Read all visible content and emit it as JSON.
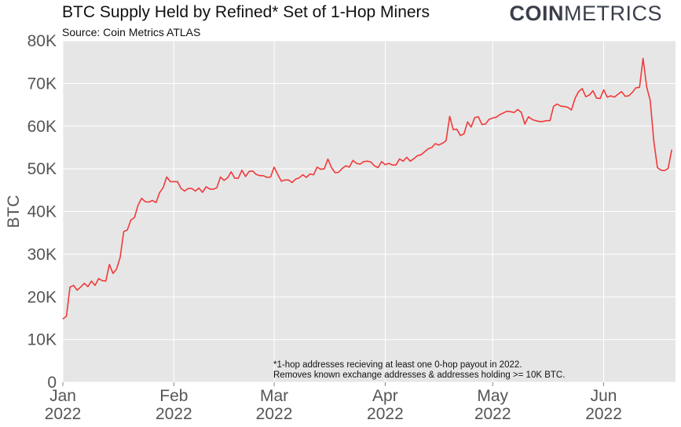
{
  "header": {
    "title": "BTC Supply Held by Refined* Set of 1-Hop Miners",
    "subtitle": "Source: Coin Metrics ATLAS",
    "logo_bold": "COIN",
    "logo_light": "METRICS"
  },
  "colors": {
    "line": "#f03a3a",
    "plot_bg": "#e6e6e6",
    "grid": "#ffffff",
    "logo": "#3a3f4b"
  },
  "chart_data": {
    "type": "line",
    "title": "BTC Supply Held by Refined* Set of 1-Hop Miners",
    "subtitle": "Source: Coin Metrics ATLAS",
    "xlabel": "",
    "ylabel": "BTC",
    "ylim": [
      0,
      80000
    ],
    "grid": true,
    "y_ticks": [
      0,
      10000,
      20000,
      30000,
      40000,
      50000,
      60000,
      70000,
      80000
    ],
    "y_tick_labels": [
      "0",
      "10K",
      "20K",
      "30K",
      "40K",
      "50K",
      "60K",
      "70K",
      "80K"
    ],
    "x_ticks": [
      {
        "date": "2022-01-01",
        "month": "Jan",
        "year": "2022"
      },
      {
        "date": "2022-02-01",
        "month": "Feb",
        "year": "2022"
      },
      {
        "date": "2022-03-01",
        "month": "Mar",
        "year": "2022"
      },
      {
        "date": "2022-04-01",
        "month": "Apr",
        "year": "2022"
      },
      {
        "date": "2022-05-01",
        "month": "May",
        "year": "2022"
      },
      {
        "date": "2022-06-01",
        "month": "Jun",
        "year": "2022"
      }
    ],
    "x_range": [
      "2022-01-01",
      "2022-06-18"
    ],
    "annotation": [
      "*1-hop addresses recieving at least one 0-hop payout in 2022.",
      "Removes known exchange addresses & addresses holding >= 10K BTC."
    ],
    "series": [
      {
        "values": [
          [
            "2022-01-01",
            14800
          ],
          [
            "2022-01-02",
            15500
          ],
          [
            "2022-01-03",
            22300
          ],
          [
            "2022-01-04",
            22700
          ],
          [
            "2022-01-05",
            21600
          ],
          [
            "2022-01-06",
            22300
          ],
          [
            "2022-01-07",
            23200
          ],
          [
            "2022-01-08",
            22400
          ],
          [
            "2022-01-09",
            23700
          ],
          [
            "2022-01-10",
            22700
          ],
          [
            "2022-01-11",
            24300
          ],
          [
            "2022-01-12",
            23800
          ],
          [
            "2022-01-13",
            23700
          ],
          [
            "2022-01-14",
            27600
          ],
          [
            "2022-01-15",
            25500
          ],
          [
            "2022-01-16",
            26500
          ],
          [
            "2022-01-17",
            29300
          ],
          [
            "2022-01-18",
            35300
          ],
          [
            "2022-01-19",
            35700
          ],
          [
            "2022-01-20",
            38000
          ],
          [
            "2022-01-21",
            38600
          ],
          [
            "2022-01-22",
            41500
          ],
          [
            "2022-01-23",
            43100
          ],
          [
            "2022-01-24",
            42300
          ],
          [
            "2022-01-25",
            42200
          ],
          [
            "2022-01-26",
            42600
          ],
          [
            "2022-01-27",
            42100
          ],
          [
            "2022-01-28",
            44400
          ],
          [
            "2022-01-29",
            45600
          ],
          [
            "2022-01-30",
            48100
          ],
          [
            "2022-01-31",
            47000
          ],
          [
            "2022-02-01",
            47000
          ],
          [
            "2022-02-02",
            47000
          ],
          [
            "2022-02-03",
            45400
          ],
          [
            "2022-02-04",
            44800
          ],
          [
            "2022-02-05",
            45400
          ],
          [
            "2022-02-06",
            45400
          ],
          [
            "2022-02-07",
            44800
          ],
          [
            "2022-02-08",
            45500
          ],
          [
            "2022-02-09",
            44500
          ],
          [
            "2022-02-10",
            45800
          ],
          [
            "2022-02-11",
            45300
          ],
          [
            "2022-02-12",
            45200
          ],
          [
            "2022-02-13",
            45600
          ],
          [
            "2022-02-14",
            48100
          ],
          [
            "2022-02-15",
            47300
          ],
          [
            "2022-02-16",
            47900
          ],
          [
            "2022-02-17",
            49300
          ],
          [
            "2022-02-18",
            47800
          ],
          [
            "2022-02-19",
            47800
          ],
          [
            "2022-02-20",
            49700
          ],
          [
            "2022-02-21",
            48200
          ],
          [
            "2022-02-22",
            49400
          ],
          [
            "2022-02-23",
            49500
          ],
          [
            "2022-02-24",
            48700
          ],
          [
            "2022-02-25",
            48400
          ],
          [
            "2022-02-26",
            48400
          ],
          [
            "2022-02-27",
            48000
          ],
          [
            "2022-02-28",
            48100
          ],
          [
            "2022-03-01",
            50400
          ],
          [
            "2022-03-02",
            48700
          ],
          [
            "2022-03-03",
            47100
          ],
          [
            "2022-03-04",
            47400
          ],
          [
            "2022-03-05",
            47400
          ],
          [
            "2022-03-06",
            46800
          ],
          [
            "2022-03-07",
            47600
          ],
          [
            "2022-03-08",
            47900
          ],
          [
            "2022-03-09",
            48600
          ],
          [
            "2022-03-10",
            48000
          ],
          [
            "2022-03-11",
            48800
          ],
          [
            "2022-03-12",
            48600
          ],
          [
            "2022-03-13",
            50400
          ],
          [
            "2022-03-14",
            49900
          ],
          [
            "2022-03-15",
            50000
          ],
          [
            "2022-03-16",
            52300
          ],
          [
            "2022-03-17",
            50300
          ],
          [
            "2022-03-18",
            49100
          ],
          [
            "2022-03-19",
            49200
          ],
          [
            "2022-03-20",
            50100
          ],
          [
            "2022-03-21",
            50700
          ],
          [
            "2022-03-22",
            50400
          ],
          [
            "2022-03-23",
            52000
          ],
          [
            "2022-03-24",
            51300
          ],
          [
            "2022-03-25",
            51100
          ],
          [
            "2022-03-26",
            51700
          ],
          [
            "2022-03-27",
            51800
          ],
          [
            "2022-03-28",
            51600
          ],
          [
            "2022-03-29",
            50700
          ],
          [
            "2022-03-30",
            50300
          ],
          [
            "2022-03-31",
            51700
          ],
          [
            "2022-04-01",
            51000
          ],
          [
            "2022-04-02",
            51300
          ],
          [
            "2022-04-03",
            50900
          ],
          [
            "2022-04-04",
            50900
          ],
          [
            "2022-04-05",
            52300
          ],
          [
            "2022-04-06",
            51800
          ],
          [
            "2022-04-07",
            52700
          ],
          [
            "2022-04-08",
            51800
          ],
          [
            "2022-04-09",
            52400
          ],
          [
            "2022-04-10",
            53100
          ],
          [
            "2022-04-11",
            53300
          ],
          [
            "2022-04-12",
            54000
          ],
          [
            "2022-04-13",
            54700
          ],
          [
            "2022-04-14",
            55000
          ],
          [
            "2022-04-15",
            55900
          ],
          [
            "2022-04-16",
            55600
          ],
          [
            "2022-04-17",
            56000
          ],
          [
            "2022-04-18",
            56600
          ],
          [
            "2022-04-19",
            62300
          ],
          [
            "2022-04-20",
            59200
          ],
          [
            "2022-04-21",
            59300
          ],
          [
            "2022-04-22",
            57800
          ],
          [
            "2022-04-23",
            58200
          ],
          [
            "2022-04-24",
            61000
          ],
          [
            "2022-04-25",
            59800
          ],
          [
            "2022-04-26",
            62000
          ],
          [
            "2022-04-27",
            62200
          ],
          [
            "2022-04-28",
            60400
          ],
          [
            "2022-04-29",
            60500
          ],
          [
            "2022-04-30",
            61600
          ],
          [
            "2022-05-01",
            61900
          ],
          [
            "2022-05-02",
            62100
          ],
          [
            "2022-05-03",
            62700
          ],
          [
            "2022-05-04",
            63100
          ],
          [
            "2022-05-05",
            63500
          ],
          [
            "2022-05-06",
            63400
          ],
          [
            "2022-05-07",
            63200
          ],
          [
            "2022-05-08",
            63900
          ],
          [
            "2022-05-09",
            63200
          ],
          [
            "2022-05-10",
            60500
          ],
          [
            "2022-05-11",
            62200
          ],
          [
            "2022-05-12",
            61600
          ],
          [
            "2022-05-13",
            61300
          ],
          [
            "2022-05-14",
            61100
          ],
          [
            "2022-05-15",
            61100
          ],
          [
            "2022-05-16",
            61300
          ],
          [
            "2022-05-17",
            61300
          ],
          [
            "2022-05-18",
            64600
          ],
          [
            "2022-05-19",
            65200
          ],
          [
            "2022-05-20",
            64700
          ],
          [
            "2022-05-21",
            64600
          ],
          [
            "2022-05-22",
            64400
          ],
          [
            "2022-05-23",
            63800
          ],
          [
            "2022-05-24",
            66500
          ],
          [
            "2022-05-25",
            68100
          ],
          [
            "2022-05-26",
            68800
          ],
          [
            "2022-05-27",
            66900
          ],
          [
            "2022-05-28",
            67300
          ],
          [
            "2022-05-29",
            68300
          ],
          [
            "2022-05-30",
            66600
          ],
          [
            "2022-05-31",
            66500
          ],
          [
            "2022-06-01",
            68500
          ],
          [
            "2022-06-02",
            66800
          ],
          [
            "2022-06-03",
            67100
          ],
          [
            "2022-06-04",
            66800
          ],
          [
            "2022-06-05",
            67500
          ],
          [
            "2022-06-06",
            68100
          ],
          [
            "2022-06-07",
            67000
          ],
          [
            "2022-06-08",
            67100
          ],
          [
            "2022-06-09",
            67900
          ],
          [
            "2022-06-10",
            69000
          ],
          [
            "2022-06-11",
            69100
          ],
          [
            "2022-06-12",
            75900
          ],
          [
            "2022-06-13",
            69200
          ],
          [
            "2022-06-14",
            66000
          ],
          [
            "2022-06-15",
            56500
          ],
          [
            "2022-06-16",
            50300
          ],
          [
            "2022-06-17",
            49700
          ],
          [
            "2022-06-18",
            49600
          ],
          [
            "2022-06-19",
            50100
          ],
          [
            "2022-06-20",
            54500
          ]
        ]
      }
    ]
  }
}
